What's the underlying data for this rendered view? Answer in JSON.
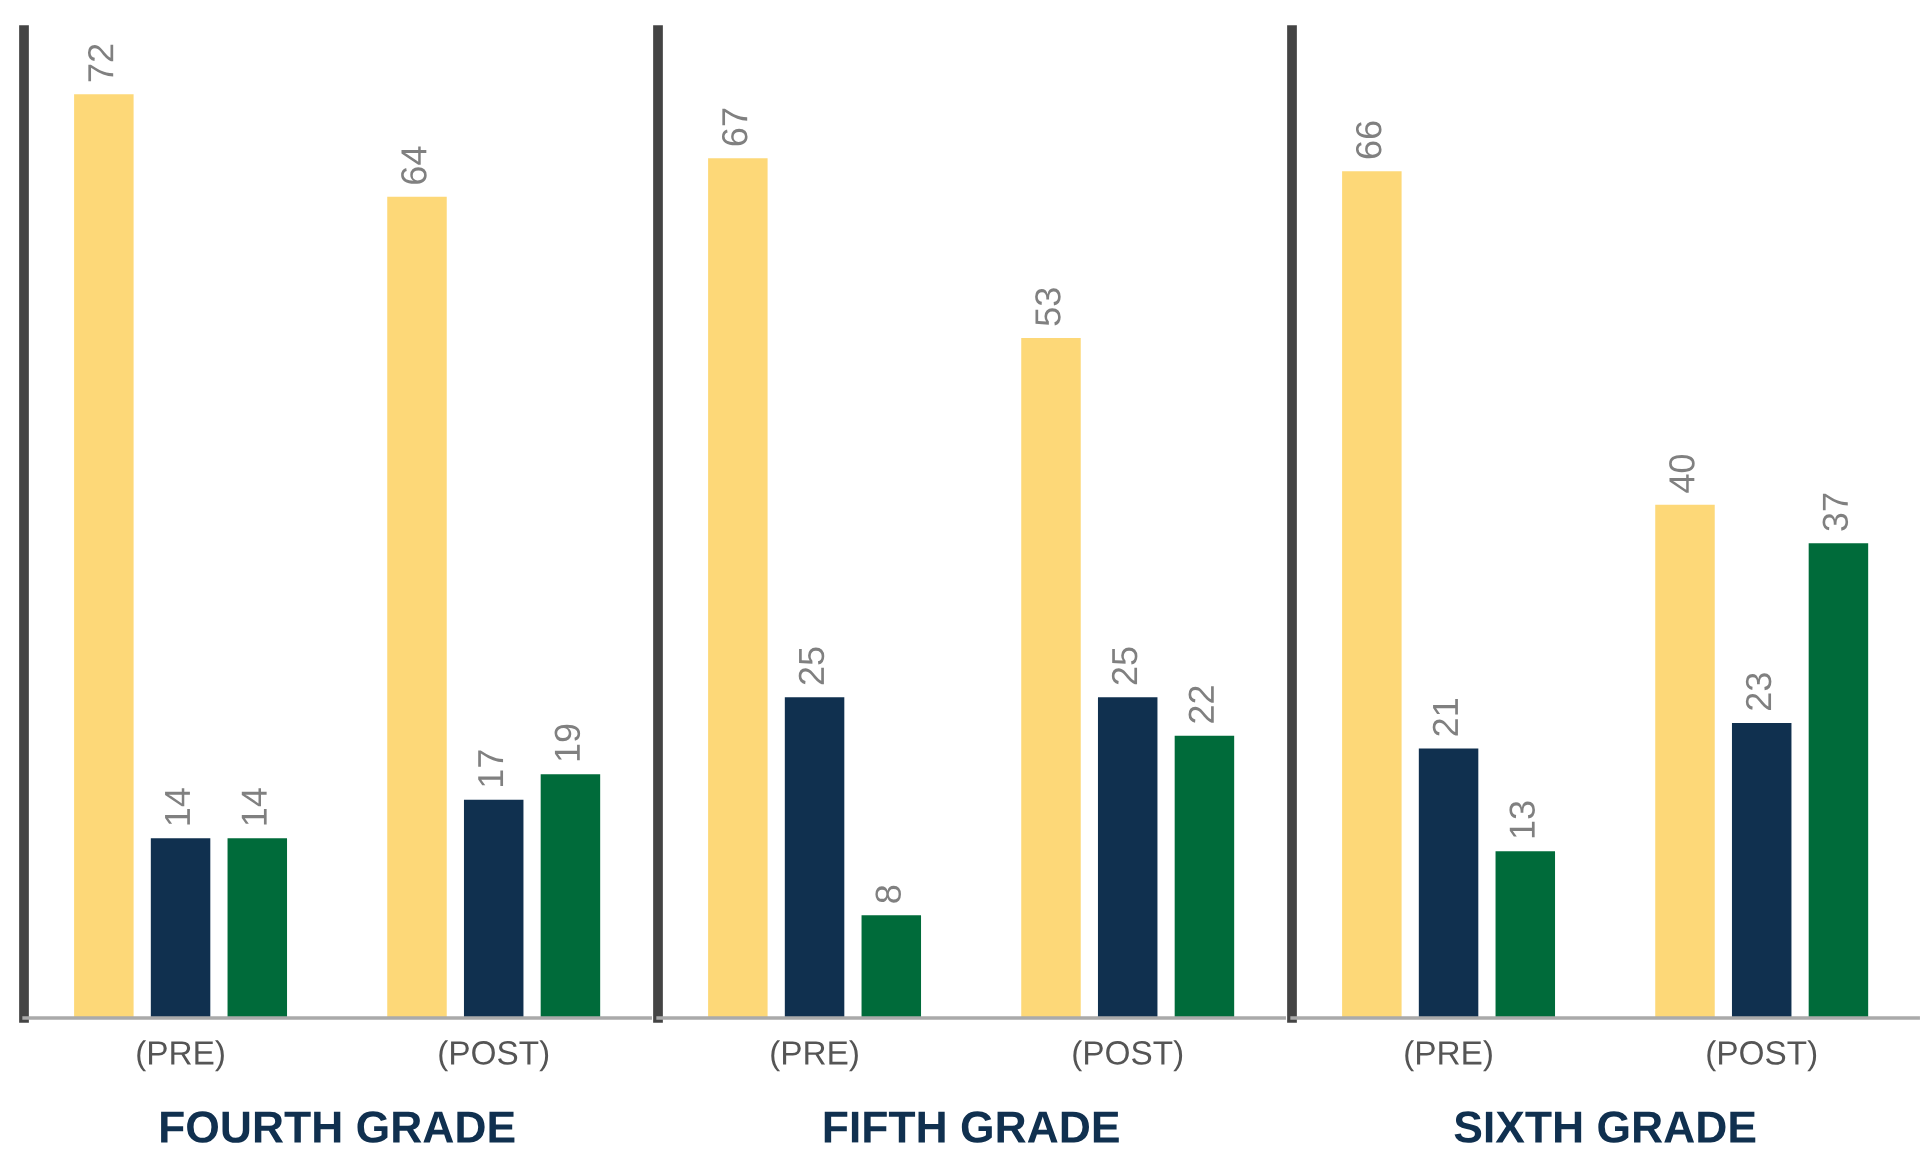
{
  "chart_data": [
    {
      "type": "bar",
      "xlabel": "FOURTH GRADE",
      "categories": [
        "(PRE)",
        "(POST)"
      ],
      "ylim": [
        0,
        77
      ],
      "tick_labels": "x",
      "data_labels": true,
      "grid": false,
      "legend": false,
      "series": [
        {
          "color": "#fdd878",
          "values": [
            72,
            64
          ]
        },
        {
          "color": "#10304f",
          "values": [
            14,
            17
          ]
        },
        {
          "color": "#006b3a",
          "values": [
            14,
            19
          ]
        }
      ]
    },
    {
      "type": "bar",
      "xlabel": "FIFTH GRADE",
      "categories": [
        "(PRE)",
        "(POST)"
      ],
      "ylim": [
        0,
        77
      ],
      "tick_labels": "x",
      "data_labels": true,
      "grid": false,
      "legend": false,
      "series": [
        {
          "color": "#fdd878",
          "values": [
            67,
            53
          ]
        },
        {
          "color": "#10304f",
          "values": [
            25,
            25
          ]
        },
        {
          "color": "#006b3a",
          "values": [
            8,
            22
          ]
        }
      ]
    },
    {
      "type": "bar",
      "xlabel": "SIXTH GRADE",
      "categories": [
        "(PRE)",
        "(POST)"
      ],
      "ylim": [
        0,
        77
      ],
      "tick_labels": "x",
      "data_labels": true,
      "grid": false,
      "legend": false,
      "series": [
        {
          "color": "#fdd878",
          "values": [
            66,
            40
          ]
        },
        {
          "color": "#10304f",
          "values": [
            21,
            23
          ]
        },
        {
          "color": "#006b3a",
          "values": [
            13,
            37
          ]
        }
      ]
    }
  ]
}
